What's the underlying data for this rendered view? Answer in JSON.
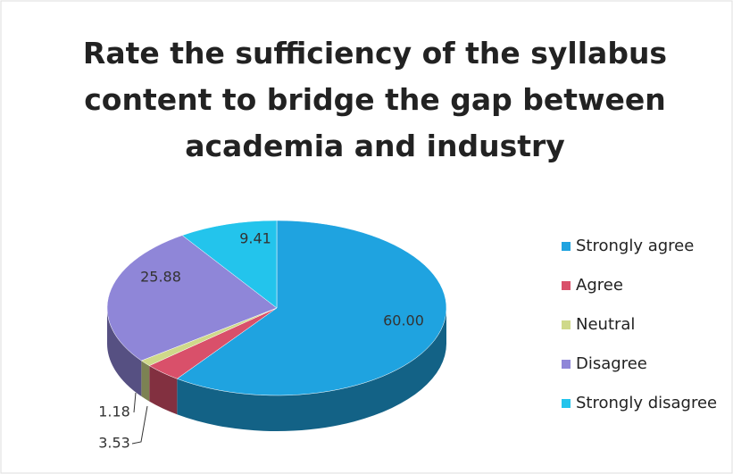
{
  "chart_data": {
    "type": "pie",
    "title": "Rate the sufficiency of the syllabus content to bridge the gap between academia and industry",
    "categories": [
      "Strongly agree",
      "Agree",
      "Neutral",
      "Disagree",
      "Strongly disagree"
    ],
    "values": [
      60,
      3.53,
      1.18,
      25.88,
      9.41
    ],
    "value_labels": [
      "60.00",
      "3.53",
      "1.18",
      "25.88",
      "9.41"
    ],
    "colors": [
      "#1fa3e0",
      "#d9506a",
      "#cfd98a",
      "#8f86d8",
      "#23c4ec"
    ],
    "legend": "right"
  }
}
